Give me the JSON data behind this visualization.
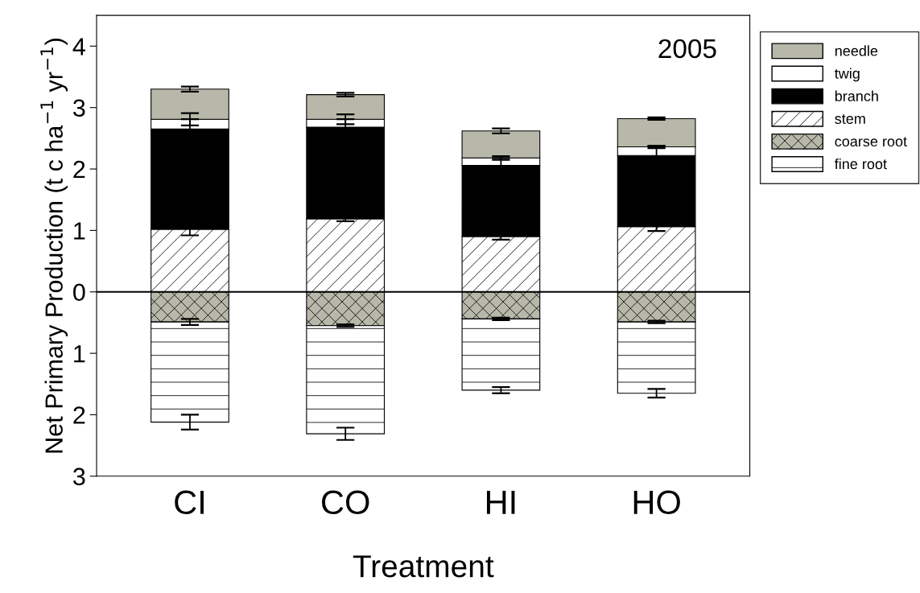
{
  "chart_data": {
    "type": "bar",
    "stacked": true,
    "xlabel": "Treatment",
    "ylabel": "Net Primary Production (t c ha$^{−1}$ yr$^{−1}$)",
    "annotations": [
      "2005"
    ],
    "categories": [
      "CI",
      "CO",
      "HI",
      "HO"
    ],
    "ylim": [
      -3,
      4.5
    ],
    "yticks": [
      {
        "value": -3,
        "label": "3"
      },
      {
        "value": -2,
        "label": "2"
      },
      {
        "value": -1,
        "label": "1"
      },
      0,
      1,
      2,
      3,
      4
    ],
    "grid": false,
    "legend": "top right",
    "ref_lines": [
      {
        "axis": "y",
        "value": 0,
        "color": "#000000"
      }
    ],
    "series": [
      {
        "name": "stem",
        "color": "#ffffff",
        "values": [
          1.02,
          1.19,
          0.9,
          1.06
        ],
        "errors": [
          0.1,
          0.04,
          0.05,
          0.07
        ]
      },
      {
        "name": "branch",
        "color": "#000000",
        "values": [
          1.63,
          1.49,
          1.16,
          1.16
        ],
        "errors": [
          0.16,
          0.13,
          0.12,
          0.15
        ]
      },
      {
        "name": "twig",
        "color": "#ffffff",
        "values": [
          0.16,
          0.13,
          0.12,
          0.14
        ],
        "errors": [
          0.1,
          0.08,
          0.03,
          0.02
        ]
      },
      {
        "name": "needle",
        "color": "#b8b8aa",
        "values": [
          0.49,
          0.4,
          0.44,
          0.46
        ],
        "errors": [
          0.04,
          0.03,
          0.04,
          0.02
        ]
      },
      {
        "name": "coarse root",
        "color": "#b8b8aa",
        "values": [
          -0.49,
          -0.55,
          -0.44,
          -0.49
        ],
        "errors": [
          0.05,
          0.02,
          0.02,
          0.02
        ]
      },
      {
        "name": "fine root",
        "color": "#ffffff",
        "values": [
          -1.63,
          -1.76,
          -1.16,
          -1.16
        ],
        "errors": [
          0.12,
          0.1,
          0.05,
          0.07
        ]
      }
    ]
  }
}
